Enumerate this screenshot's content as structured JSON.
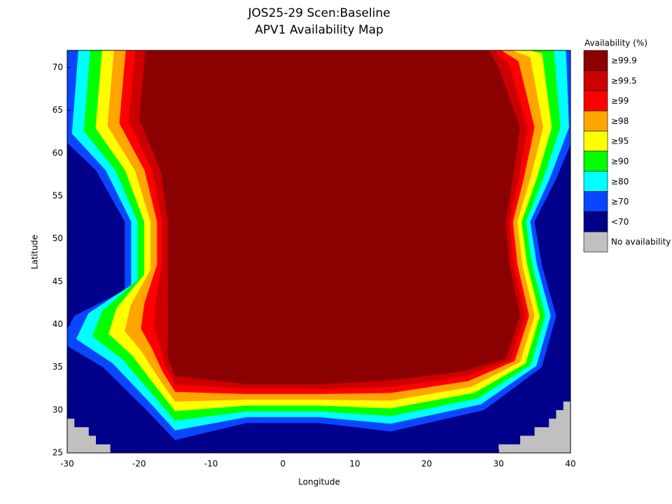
{
  "chart_data": {
    "type": "map",
    "title": "JOS25-29 Scen:Baseline",
    "subtitle": "APV1 Availability Map",
    "x_label": "Longitude",
    "y_label": "Latitude",
    "xlim": [
      -30,
      40
    ],
    "ylim": [
      25,
      72
    ],
    "xticks": [
      -30,
      -20,
      -10,
      0,
      10,
      20,
      30,
      40
    ],
    "yticks": [
      25,
      30,
      35,
      40,
      45,
      50,
      55,
      60,
      65,
      70
    ],
    "legend_title": "Availability (%)",
    "legend": [
      {
        "label": "≥99.9",
        "color": "#8b0000"
      },
      {
        "label": "≥99.5",
        "color": "#cc0000"
      },
      {
        "label": "≥99",
        "color": "#ff0000"
      },
      {
        "label": "≥98",
        "color": "#ffa500"
      },
      {
        "label": "≥95",
        "color": "#ffff00"
      },
      {
        "label": "≥90",
        "color": "#00ff00"
      },
      {
        "label": "≥80",
        "color": "#00ffff"
      },
      {
        "label": "≥70",
        "color": "#0a46ff"
      },
      {
        "label": "<70",
        "color": "#00008b"
      },
      {
        "label": "No availability",
        "color": "#c0c0c0"
      }
    ]
  }
}
